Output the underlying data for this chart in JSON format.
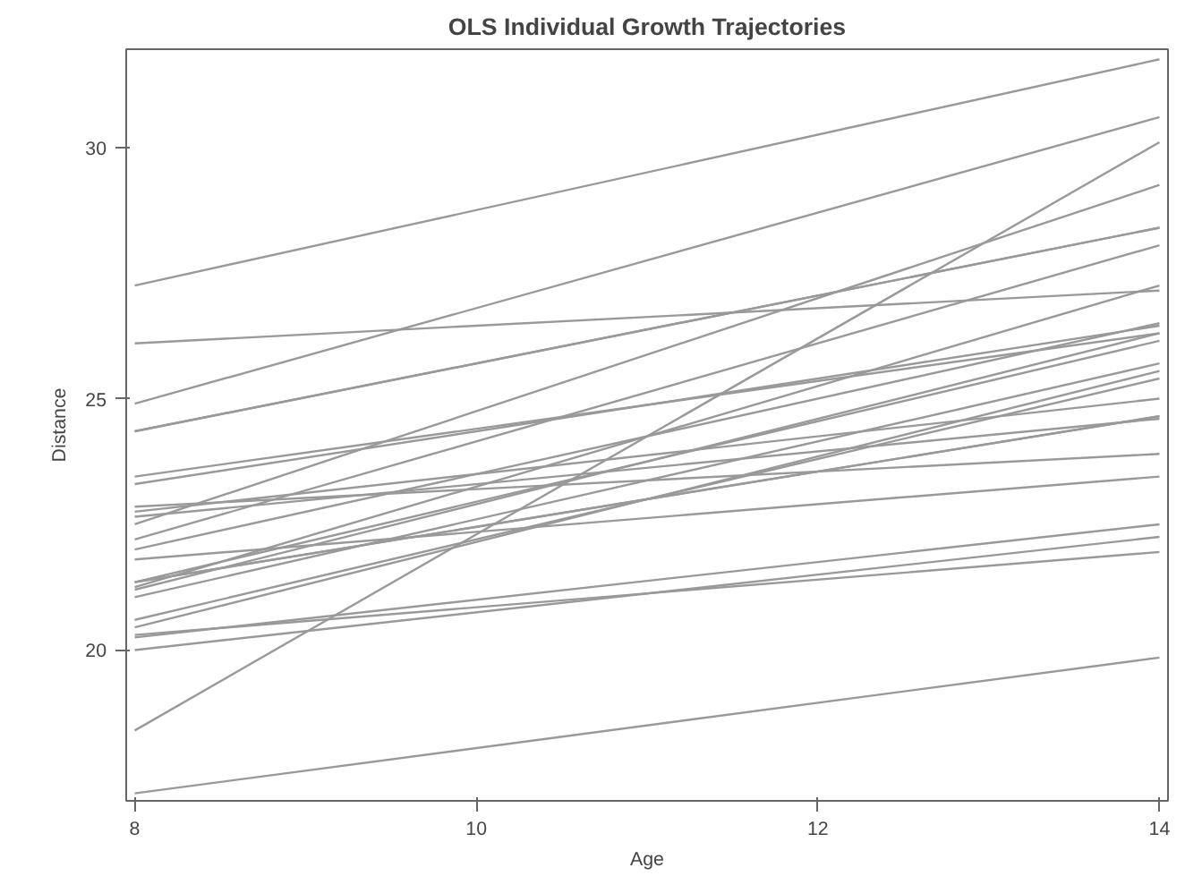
{
  "chart_data": {
    "type": "line",
    "title": "OLS Individual Growth Trajectories",
    "xlabel": "Age",
    "ylabel": "Distance",
    "x": [
      8,
      14
    ],
    "xlim": [
      7.95,
      14.05
    ],
    "ylim": [
      17.0,
      31.95
    ],
    "xticks": [
      8,
      10,
      12,
      14
    ],
    "yticks": [
      20,
      25,
      30
    ],
    "grid": false,
    "marker": "none",
    "line_style": "solid",
    "series": [
      {
        "color": "#999999",
        "values": [
          24.9,
          30.6
        ]
      },
      {
        "color": "#999999",
        "values": [
          21.05,
          25.7
        ]
      },
      {
        "color": "#999999",
        "values": [
          22.0,
          26.5
        ]
      },
      {
        "color": "#999999",
        "values": [
          26.1,
          27.15
        ]
      },
      {
        "color": "#999999",
        "values": [
          20.45,
          25.55
        ]
      },
      {
        "color": "#999999",
        "values": [
          24.35,
          28.4
        ]
      },
      {
        "color": "#999999",
        "values": [
          21.35,
          26.15
        ]
      },
      {
        "color": "#999999",
        "values": [
          22.75,
          25.0
        ]
      },
      {
        "color": "#999999",
        "values": [
          22.2,
          28.05
        ]
      },
      {
        "color": "#999999",
        "values": [
          27.25,
          31.75
        ]
      },
      {
        "color": "#999999",
        "values": [
          22.65,
          24.6
        ]
      },
      {
        "color": "#999999",
        "values": [
          21.25,
          27.25
        ]
      },
      {
        "color": "#999999",
        "values": [
          18.4,
          30.1
        ]
      },
      {
        "color": "#999999",
        "values": [
          23.3,
          26.45
        ]
      },
      {
        "color": "#999999",
        "values": [
          22.5,
          29.25
        ]
      },
      {
        "color": "#999999",
        "values": [
          21.35,
          24.65
        ]
      },
      {
        "color": "#999999",
        "values": [
          20.25,
          22.5
        ]
      },
      {
        "color": "#999999",
        "values": [
          20.6,
          25.4
        ]
      },
      {
        "color": "#999999",
        "values": [
          21.2,
          26.3
        ]
      },
      {
        "color": "#999999",
        "values": [
          23.45,
          26.3
        ]
      },
      {
        "color": "#999999",
        "values": [
          21.8,
          23.45
        ]
      },
      {
        "color": "#999999",
        "values": [
          20.0,
          22.25
        ]
      },
      {
        "color": "#999999",
        "values": [
          21.35,
          24.65
        ]
      },
      {
        "color": "#999999",
        "values": [
          22.85,
          23.9
        ]
      },
      {
        "color": "#999999",
        "values": [
          20.3,
          21.95
        ]
      },
      {
        "color": "#999999",
        "values": [
          17.15,
          19.85
        ]
      },
      {
        "color": "#999999",
        "values": [
          24.35,
          28.4
        ]
      }
    ]
  }
}
